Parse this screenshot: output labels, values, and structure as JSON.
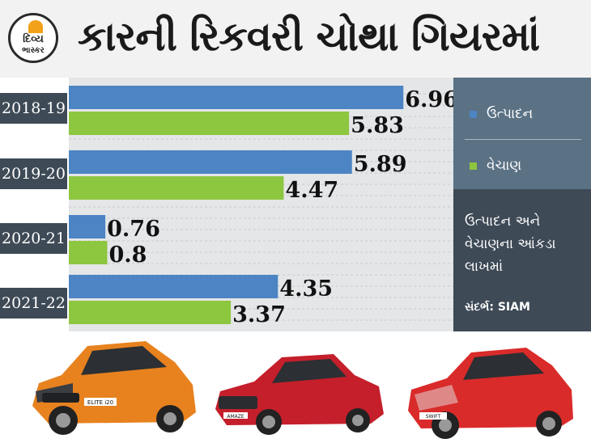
{
  "brand": {
    "line1": "દિવ્ય",
    "line2": "ભાસ્કર"
  },
  "title": "કારની રિકવરી ચોથા ગિયરમાં",
  "legend": {
    "production": "ઉત્પાદન",
    "sales": "વેચાણ"
  },
  "note": "ઉત્પાદન અને વેચાણના આંકડા લાખમાં",
  "source": "સંદર્ભ: SIAM",
  "colors": {
    "production": "#4c84c4",
    "sales": "#8dc63f",
    "panel_dark": "#3e4a56",
    "panel_light": "#5b7285"
  },
  "car_badges": [
    "ELITE i20",
    "AMAZE",
    "SWIFT"
  ],
  "chart_data": {
    "type": "bar",
    "orientation": "horizontal",
    "categories": [
      "2018-19",
      "2019-20",
      "2020-21",
      "2021-22"
    ],
    "series": [
      {
        "name": "ઉત્પાદન",
        "values": [
          6.96,
          5.89,
          0.76,
          4.35
        ],
        "labels": [
          "6.96",
          "5.89",
          "0.76",
          "4.35"
        ]
      },
      {
        "name": "વેચાણ",
        "values": [
          5.83,
          4.47,
          0.8,
          3.37
        ],
        "labels": [
          "5.83",
          "4.47",
          "0.8",
          "3.37"
        ]
      }
    ],
    "xlim": [
      0,
      8
    ],
    "grid": true,
    "legend_position": "right"
  }
}
